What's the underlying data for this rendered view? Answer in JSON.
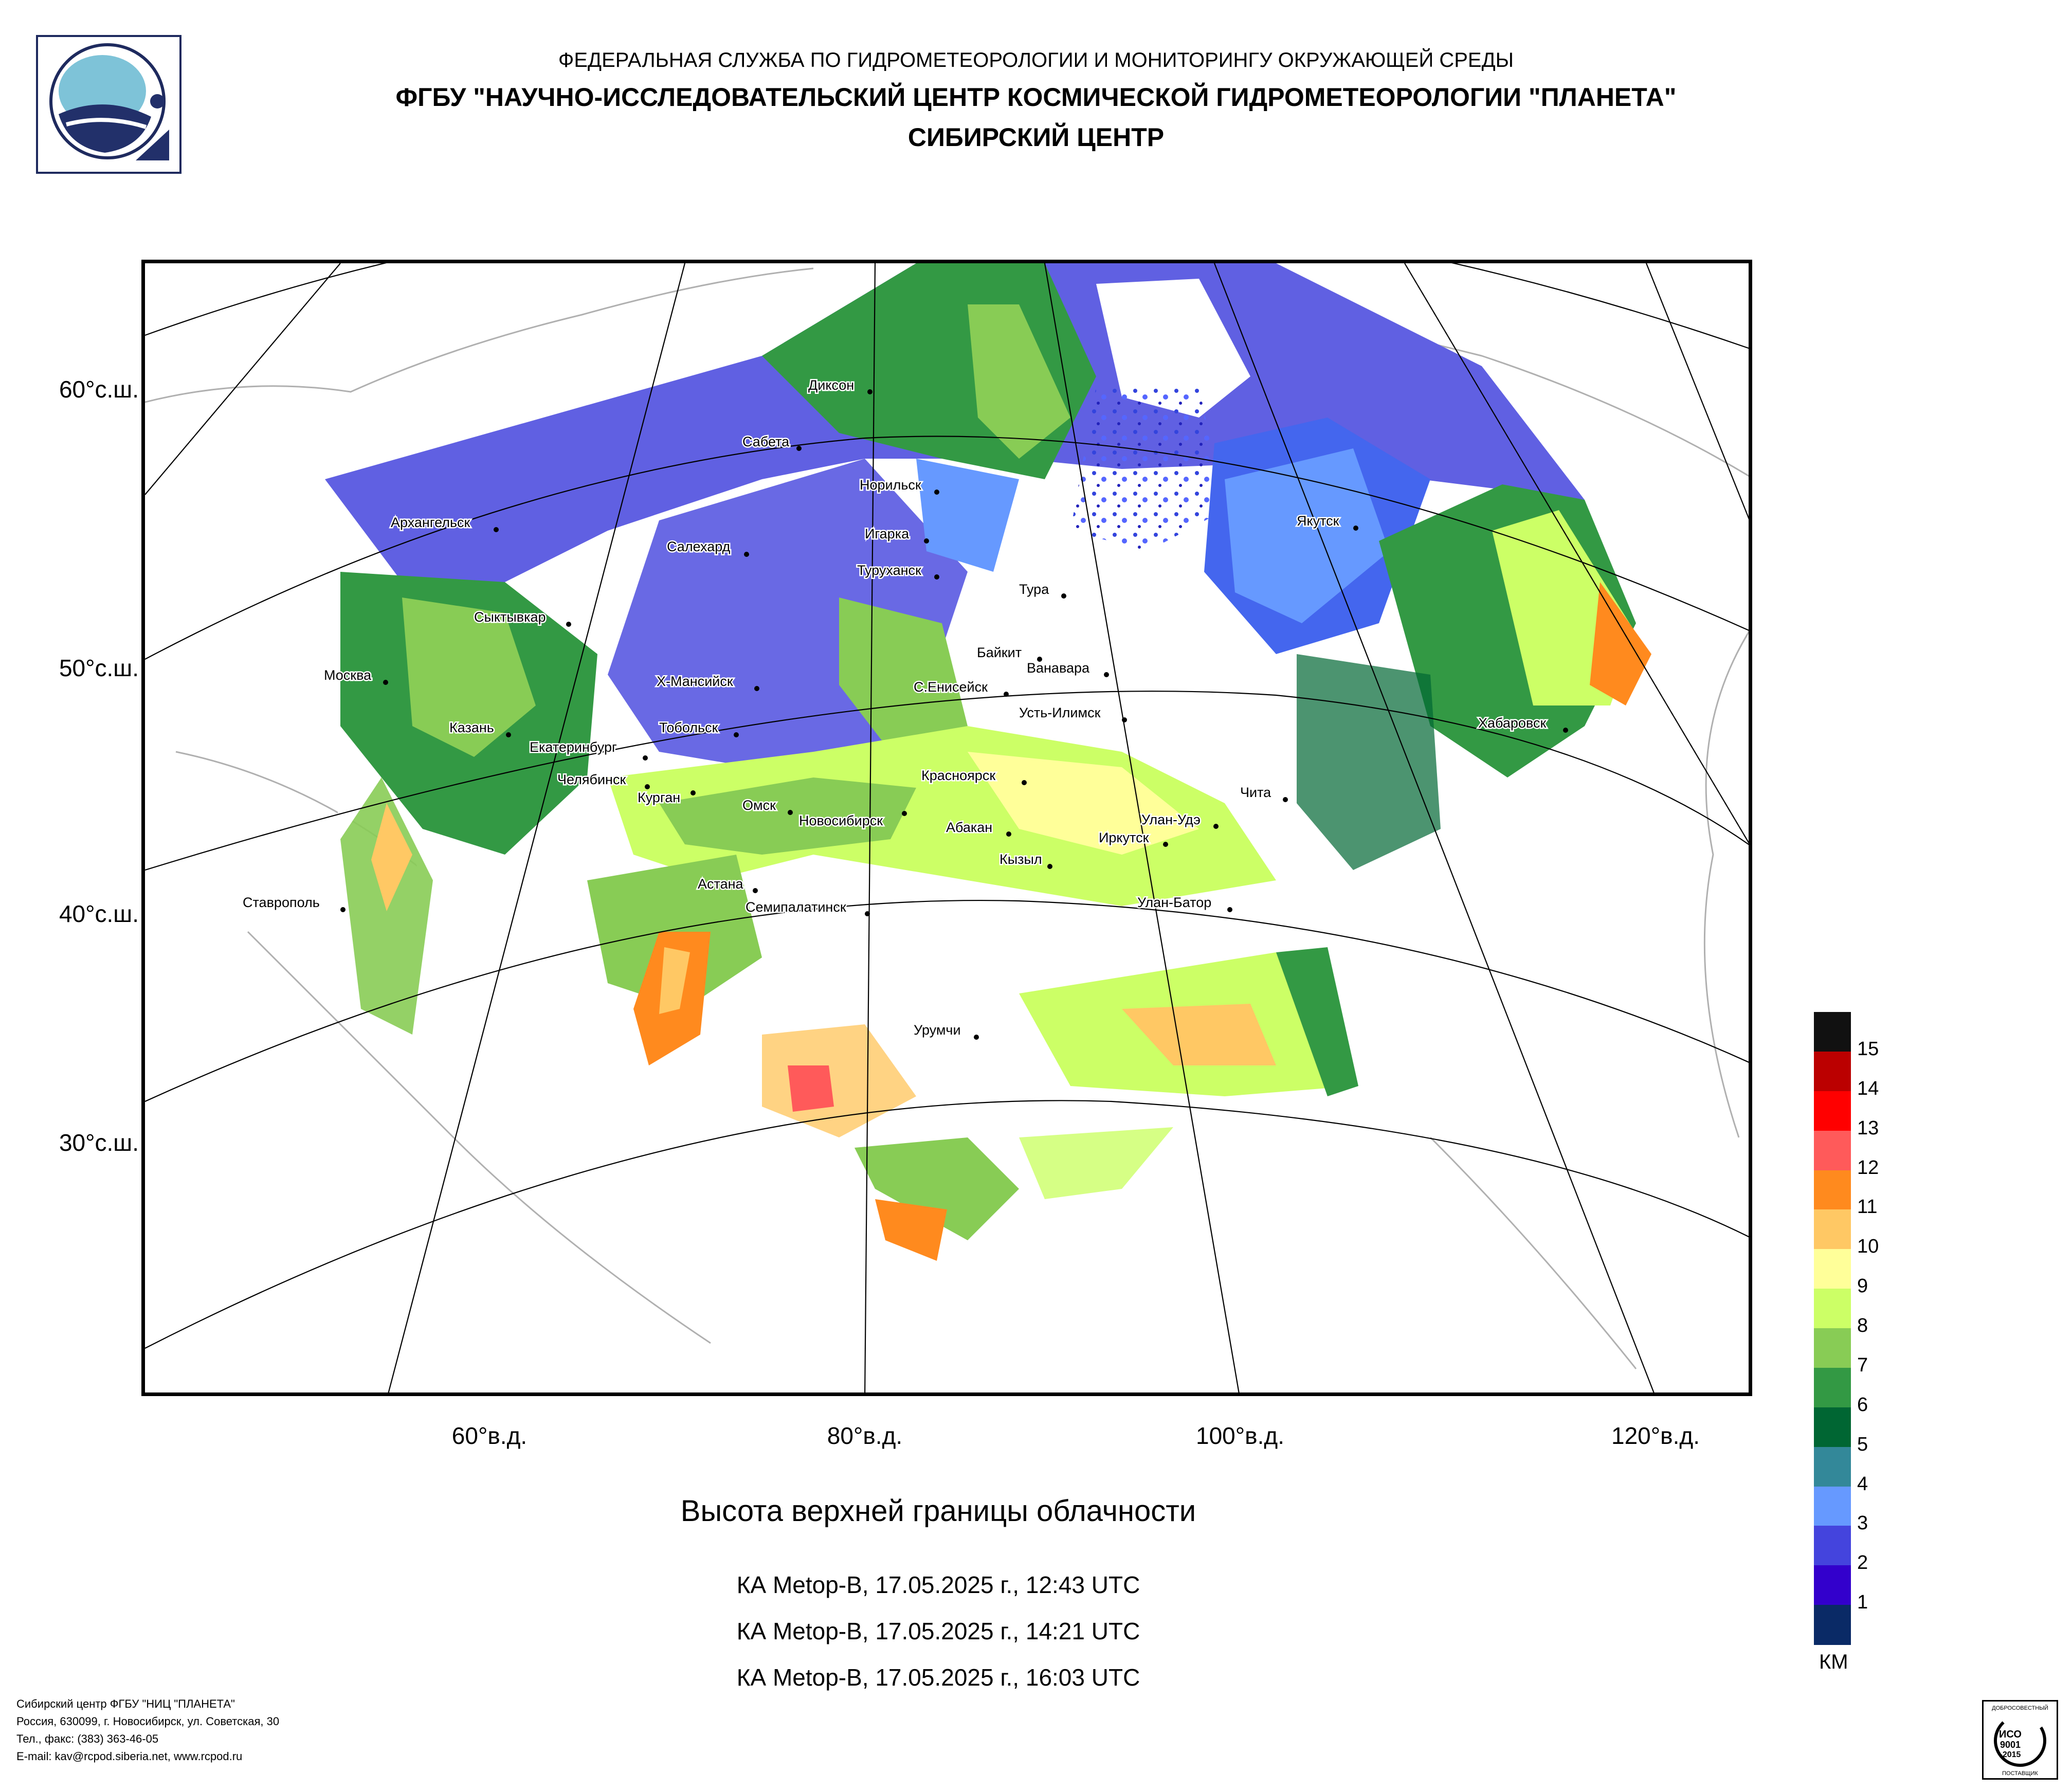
{
  "header": {
    "organization": "ФЕДЕРАЛЬНАЯ СЛУЖБА ПО ГИДРОМЕТЕОРОЛОГИИ И МОНИТОРИНГУ ОКРУЖАЮЩЕЙ СРЕДЫ",
    "institute": "ФГБУ \"НАУЧНО-ИССЛЕДОВАТЕЛЬСКИЙ ЦЕНТР КОСМИЧЕСКОЙ ГИДРОМЕТЕОРОЛОГИИ \"ПЛАНЕТА\"",
    "center": "СИБИРСКИЙ ЦЕНТР"
  },
  "map": {
    "lat_labels": [
      "60°с.ш.",
      "50°с.ш.",
      "40°с.ш.",
      "30°с.ш."
    ],
    "lon_labels": [
      "60°в.д.",
      "80°в.д.",
      "100°в.д.",
      "120°в.д."
    ],
    "cities": [
      "Диксон",
      "Сабета",
      "Норильск",
      "Игарка",
      "Туруханск",
      "Салехард",
      "Архангельск",
      "Сыктывкар",
      "Москва",
      "Казань",
      "Екатеринбург",
      "Челябинск",
      "Курган",
      "Тобольск",
      "Х-Мансийск",
      "С.Енисейск",
      "Байкит",
      "Ванавара",
      "Тура",
      "Якутск",
      "Хабаровск",
      "Усть-Илимск",
      "Красноярск",
      "Омск",
      "Новосибирск",
      "Абакан",
      "Кызыл",
      "Иркутск",
      "Улан-Удэ",
      "Чита",
      "Улан-Батор",
      "Астана",
      "Семипалатинск",
      "Ставрополь",
      "Урумчи"
    ]
  },
  "product": {
    "title": "Высота верхней границы облачности",
    "passes": [
      "КА Metop-B, 17.05.2025 г., 12:43 UTC",
      "КА Metop-B, 17.05.2025 г., 14:21 UTC",
      "КА Metop-B, 17.05.2025 г., 16:03 UTC"
    ]
  },
  "legend": {
    "unit": "КМ",
    "levels": [
      {
        "label": "15",
        "color": "#111111"
      },
      {
        "label": "14",
        "color": "#bb0000"
      },
      {
        "label": "13",
        "color": "#ff0000"
      },
      {
        "label": "12",
        "color": "#ff5a5a"
      },
      {
        "label": "11",
        "color": "#ff8a1e"
      },
      {
        "label": "10",
        "color": "#ffc864"
      },
      {
        "label": "9",
        "color": "#ffff99"
      },
      {
        "label": "8",
        "color": "#ccff66"
      },
      {
        "label": "7",
        "color": "#88cc55"
      },
      {
        "label": "6",
        "color": "#339944"
      },
      {
        "label": "5",
        "color": "#006633"
      },
      {
        "label": "4",
        "color": "#338899"
      },
      {
        "label": "3",
        "color": "#6699ff"
      },
      {
        "label": "2",
        "color": "#4444dd"
      },
      {
        "label": "1",
        "color": "#3300cc"
      },
      {
        "label": "",
        "color": "#0a2a66"
      }
    ]
  },
  "footer": {
    "lines": [
      "Сибирский центр ФГБУ \"НИЦ \"ПЛАНЕТА\"",
      "Россия, 630099, г. Новосибирск, ул. Советская, 30",
      "Тел., факс: (383) 363-46-05",
      "E-mail: kav@rcpod.siberia.net, www.rcpod.ru"
    ]
  },
  "certificate": {
    "lines": [
      "ДОБРОСОВЕСТНЫЙ",
      "ИСО",
      "9001",
      "-2015",
      "ПОСТАВЩИК"
    ]
  }
}
